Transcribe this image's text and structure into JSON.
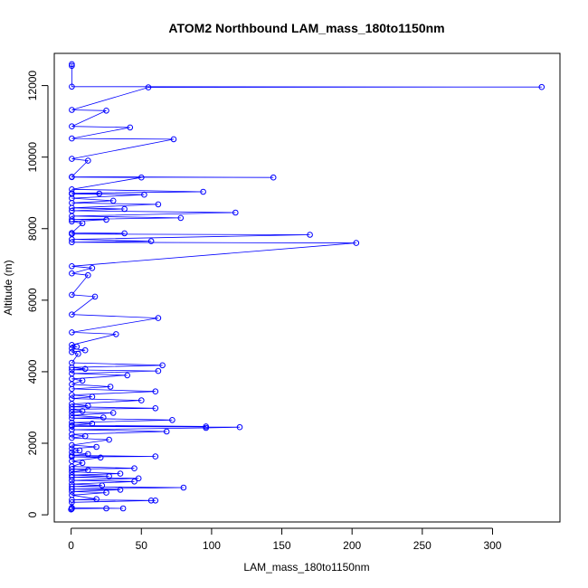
{
  "chart_data": {
    "type": "line",
    "title": "ATOM2 Northbound LAM_mass_180to1150nm",
    "xlabel": "LAM_mass_180to1150nm",
    "ylabel": "Altitude (m)",
    "xlim": [
      -12,
      348
    ],
    "ylim": [
      -200,
      12900
    ],
    "xticks": [
      0,
      50,
      100,
      150,
      200,
      250,
      300
    ],
    "yticks": [
      0,
      2000,
      4000,
      6000,
      8000,
      10000,
      12000
    ],
    "grid": false,
    "color": "#0000ff",
    "series": [
      {
        "values": [
          [
            0,
            150
          ],
          [
            0.5,
            170
          ],
          [
            25,
            180
          ],
          [
            37,
            180
          ],
          [
            0.5,
            200
          ],
          [
            0.5,
            350
          ],
          [
            57,
            400
          ],
          [
            60,
            400
          ],
          [
            0.5,
            420
          ],
          [
            18,
            440
          ],
          [
            0.5,
            550
          ],
          [
            25,
            620
          ],
          [
            0.5,
            650
          ],
          [
            35,
            700
          ],
          [
            0.5,
            720
          ],
          [
            80,
            760
          ],
          [
            0.5,
            790
          ],
          [
            22,
            820
          ],
          [
            0.5,
            860
          ],
          [
            45,
            930
          ],
          [
            0.5,
            960
          ],
          [
            48,
            1020
          ],
          [
            0.5,
            1050
          ],
          [
            27,
            1080
          ],
          [
            0.5,
            1110
          ],
          [
            35,
            1150
          ],
          [
            0.5,
            1200
          ],
          [
            12,
            1250
          ],
          [
            0.5,
            1280
          ],
          [
            45,
            1300
          ],
          [
            0.5,
            1350
          ],
          [
            8,
            1450
          ],
          [
            0.5,
            1500
          ],
          [
            21,
            1600
          ],
          [
            0.5,
            1620
          ],
          [
            60,
            1630
          ],
          [
            0.5,
            1660
          ],
          [
            12,
            1700
          ],
          [
            0.5,
            1750
          ],
          [
            6,
            1800
          ],
          [
            0.5,
            1850
          ],
          [
            18,
            1900
          ],
          [
            0.5,
            1950
          ],
          [
            27,
            2100
          ],
          [
            0.5,
            2150
          ],
          [
            10,
            2200
          ],
          [
            0.5,
            2250
          ],
          [
            68,
            2330
          ],
          [
            0.5,
            2380
          ],
          [
            96,
            2430
          ],
          [
            120,
            2450
          ],
          [
            0.5,
            2470
          ],
          [
            96,
            2470
          ],
          [
            0.5,
            2500
          ],
          [
            15,
            2550
          ],
          [
            0.5,
            2580
          ],
          [
            72,
            2650
          ],
          [
            0.5,
            2700
          ],
          [
            23,
            2720
          ],
          [
            0.5,
            2780
          ],
          [
            30,
            2850
          ],
          [
            0.5,
            2870
          ],
          [
            8,
            2900
          ],
          [
            0.5,
            2950
          ],
          [
            60,
            2980
          ],
          [
            0.5,
            3020
          ],
          [
            12,
            3050
          ],
          [
            0.5,
            3100
          ],
          [
            50,
            3200
          ],
          [
            0.5,
            3250
          ],
          [
            15,
            3300
          ],
          [
            0.5,
            3350
          ],
          [
            60,
            3450
          ],
          [
            0.5,
            3520
          ],
          [
            28,
            3580
          ],
          [
            0.5,
            3650
          ],
          [
            8,
            3750
          ],
          [
            0.5,
            3800
          ],
          [
            40,
            3900
          ],
          [
            0.5,
            3950
          ],
          [
            62,
            4020
          ],
          [
            0.5,
            4050
          ],
          [
            10,
            4080
          ],
          [
            0.5,
            4120
          ],
          [
            65,
            4180
          ],
          [
            0.5,
            4250
          ],
          [
            5,
            4500
          ],
          [
            0.5,
            4550
          ],
          [
            10,
            4600
          ],
          [
            0.5,
            4650
          ],
          [
            4,
            4700
          ],
          [
            0.5,
            4750
          ],
          [
            32,
            5050
          ],
          [
            0.5,
            5100
          ],
          [
            62,
            5500
          ],
          [
            0.5,
            5600
          ],
          [
            17,
            6100
          ],
          [
            0.5,
            6150
          ],
          [
            12,
            6700
          ],
          [
            0.5,
            6750
          ],
          [
            15,
            6900
          ],
          [
            0.5,
            6950
          ],
          [
            203,
            7600
          ],
          [
            0.5,
            7620
          ],
          [
            57,
            7650
          ],
          [
            0.5,
            7700
          ],
          [
            170,
            7830
          ],
          [
            0.5,
            7850
          ],
          [
            38,
            7870
          ],
          [
            0.5,
            7880
          ],
          [
            8,
            8150
          ],
          [
            0.5,
            8200
          ],
          [
            25,
            8250
          ],
          [
            0.5,
            8260
          ],
          [
            78,
            8300
          ],
          [
            0.5,
            8350
          ],
          [
            117,
            8450
          ],
          [
            0.5,
            8500
          ],
          [
            38,
            8550
          ],
          [
            0.5,
            8580
          ],
          [
            62,
            8680
          ],
          [
            0.5,
            8720
          ],
          [
            30,
            8780
          ],
          [
            0.5,
            8850
          ],
          [
            52,
            8950
          ],
          [
            0.5,
            8970
          ],
          [
            20,
            8980
          ],
          [
            0.5,
            8990
          ],
          [
            94,
            9030
          ],
          [
            0.5,
            9100
          ],
          [
            50,
            9430
          ],
          [
            0.5,
            9440
          ],
          [
            144,
            9430
          ],
          [
            0.5,
            9450
          ],
          [
            12,
            9900
          ],
          [
            0.5,
            9950
          ],
          [
            73,
            10500
          ],
          [
            0.5,
            10520
          ],
          [
            42,
            10830
          ],
          [
            0.5,
            10860
          ],
          [
            25,
            11300
          ],
          [
            0.5,
            11320
          ],
          [
            55,
            11950
          ],
          [
            335,
            11960
          ],
          [
            0.5,
            11970
          ],
          [
            0.5,
            12550
          ],
          [
            0.5,
            12600
          ]
        ]
      }
    ]
  }
}
